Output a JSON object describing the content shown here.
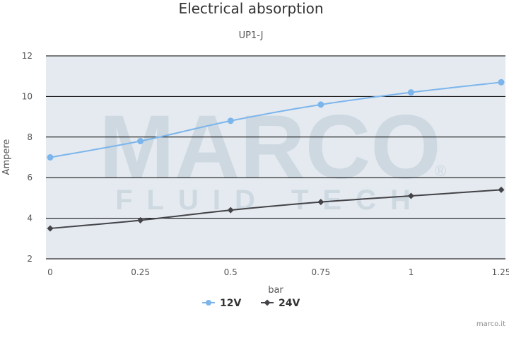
{
  "chart_data": {
    "type": "line",
    "title": "Electrical absorption",
    "subtitle": "UP1-J",
    "xlabel": "bar",
    "ylabel": "Ampere",
    "xlim": [
      0,
      1.25
    ],
    "ylim": [
      2,
      12
    ],
    "x_ticks": [
      "0",
      "0.25",
      "0.5",
      "0.75",
      "1",
      "1.25"
    ],
    "y_ticks": [
      "2",
      "4",
      "6",
      "8",
      "10",
      "12"
    ],
    "grid": true,
    "legend": "bottom-center",
    "series": [
      {
        "name": "12V",
        "x": [
          0,
          0.25,
          0.5,
          0.75,
          1,
          1.25
        ],
        "values": [
          7.0,
          7.8,
          8.8,
          9.6,
          10.2,
          10.7
        ],
        "color": "#7cb5ec",
        "marker": "circle"
      },
      {
        "name": "24V",
        "x": [
          0,
          0.25,
          0.5,
          0.75,
          1,
          1.25
        ],
        "values": [
          3.5,
          3.9,
          4.4,
          4.8,
          5.1,
          5.4
        ],
        "color": "#434348",
        "marker": "diamond"
      }
    ],
    "watermark": {
      "line1": "MARCO",
      "line2": "FLUID TECH",
      "mark": "®"
    },
    "credit": "marco.it"
  }
}
